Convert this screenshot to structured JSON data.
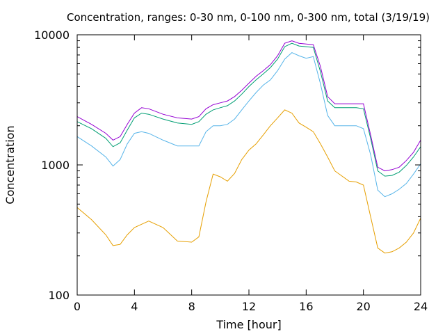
{
  "chart_data": {
    "type": "line",
    "title": "Concentration, ranges: 0-30 nm, 0-100 nm, 0-300 nm, total (3/19/19)",
    "xlabel": "Time [hour]",
    "ylabel": "Concentration",
    "xlim": [
      0,
      24
    ],
    "ylim": [
      100,
      10000
    ],
    "yscale": "log",
    "grid": false,
    "x_ticks": [
      0,
      4,
      8,
      12,
      16,
      20,
      24
    ],
    "x_tick_labels": [
      "0",
      "4",
      "8",
      "12",
      "16",
      "20",
      "24"
    ],
    "y_ticks": [
      100,
      1000,
      10000
    ],
    "y_tick_labels": [
      "100",
      "1000",
      "10000"
    ],
    "x": [
      0,
      1,
      2,
      2.5,
      3,
      3.5,
      4,
      4.5,
      5,
      6,
      7,
      8,
      8.5,
      9,
      9.5,
      10,
      10.5,
      11,
      11.5,
      12,
      12.5,
      13,
      13.5,
      14,
      14.5,
      15,
      15.5,
      16,
      16.5,
      17,
      17.5,
      18,
      19,
      19.5,
      20,
      20.5,
      21,
      21.5,
      22,
      22.5,
      23,
      23.5,
      24
    ],
    "series": [
      {
        "color": "#e69f00",
        "values": [
          470,
          380,
          290,
          240,
          245,
          290,
          330,
          350,
          370,
          330,
          260,
          255,
          280,
          520,
          850,
          810,
          750,
          860,
          1100,
          1300,
          1450,
          1700,
          2000,
          2300,
          2650,
          2500,
          2100,
          1950,
          1800,
          1450,
          1150,
          900,
          750,
          740,
          700,
          400,
          230,
          210,
          215,
          230,
          255,
          300,
          390
        ]
      },
      {
        "color": "#56b4e9",
        "values": [
          1650,
          1400,
          1150,
          980,
          1100,
          1450,
          1750,
          1800,
          1750,
          1550,
          1400,
          1400,
          1400,
          1800,
          2000,
          2000,
          2050,
          2250,
          2650,
          3100,
          3600,
          4100,
          4500,
          5300,
          6500,
          7300,
          6900,
          6600,
          6800,
          4200,
          2400,
          2000,
          2000,
          2000,
          1900,
          1200,
          640,
          570,
          600,
          650,
          720,
          850,
          1020
        ]
      },
      {
        "color": "#009e73",
        "values": [
          2150,
          1900,
          1600,
          1380,
          1480,
          1850,
          2300,
          2500,
          2450,
          2250,
          2100,
          2050,
          2150,
          2450,
          2650,
          2750,
          2850,
          3100,
          3500,
          4000,
          4500,
          5000,
          5600,
          6500,
          8100,
          8600,
          8200,
          8100,
          8000,
          5200,
          3100,
          2750,
          2750,
          2750,
          2700,
          1600,
          900,
          820,
          830,
          880,
          990,
          1150,
          1380
        ]
      },
      {
        "color": "#9400d3",
        "values": [
          2350,
          2050,
          1750,
          1550,
          1650,
          2050,
          2500,
          2750,
          2700,
          2450,
          2300,
          2250,
          2350,
          2700,
          2900,
          3000,
          3100,
          3350,
          3750,
          4250,
          4800,
          5300,
          5900,
          6900,
          8600,
          9000,
          8600,
          8500,
          8400,
          5700,
          3350,
          2950,
          2950,
          2950,
          2950,
          1700,
          960,
          900,
          920,
          960,
          1080,
          1250,
          1550
        ]
      }
    ]
  }
}
